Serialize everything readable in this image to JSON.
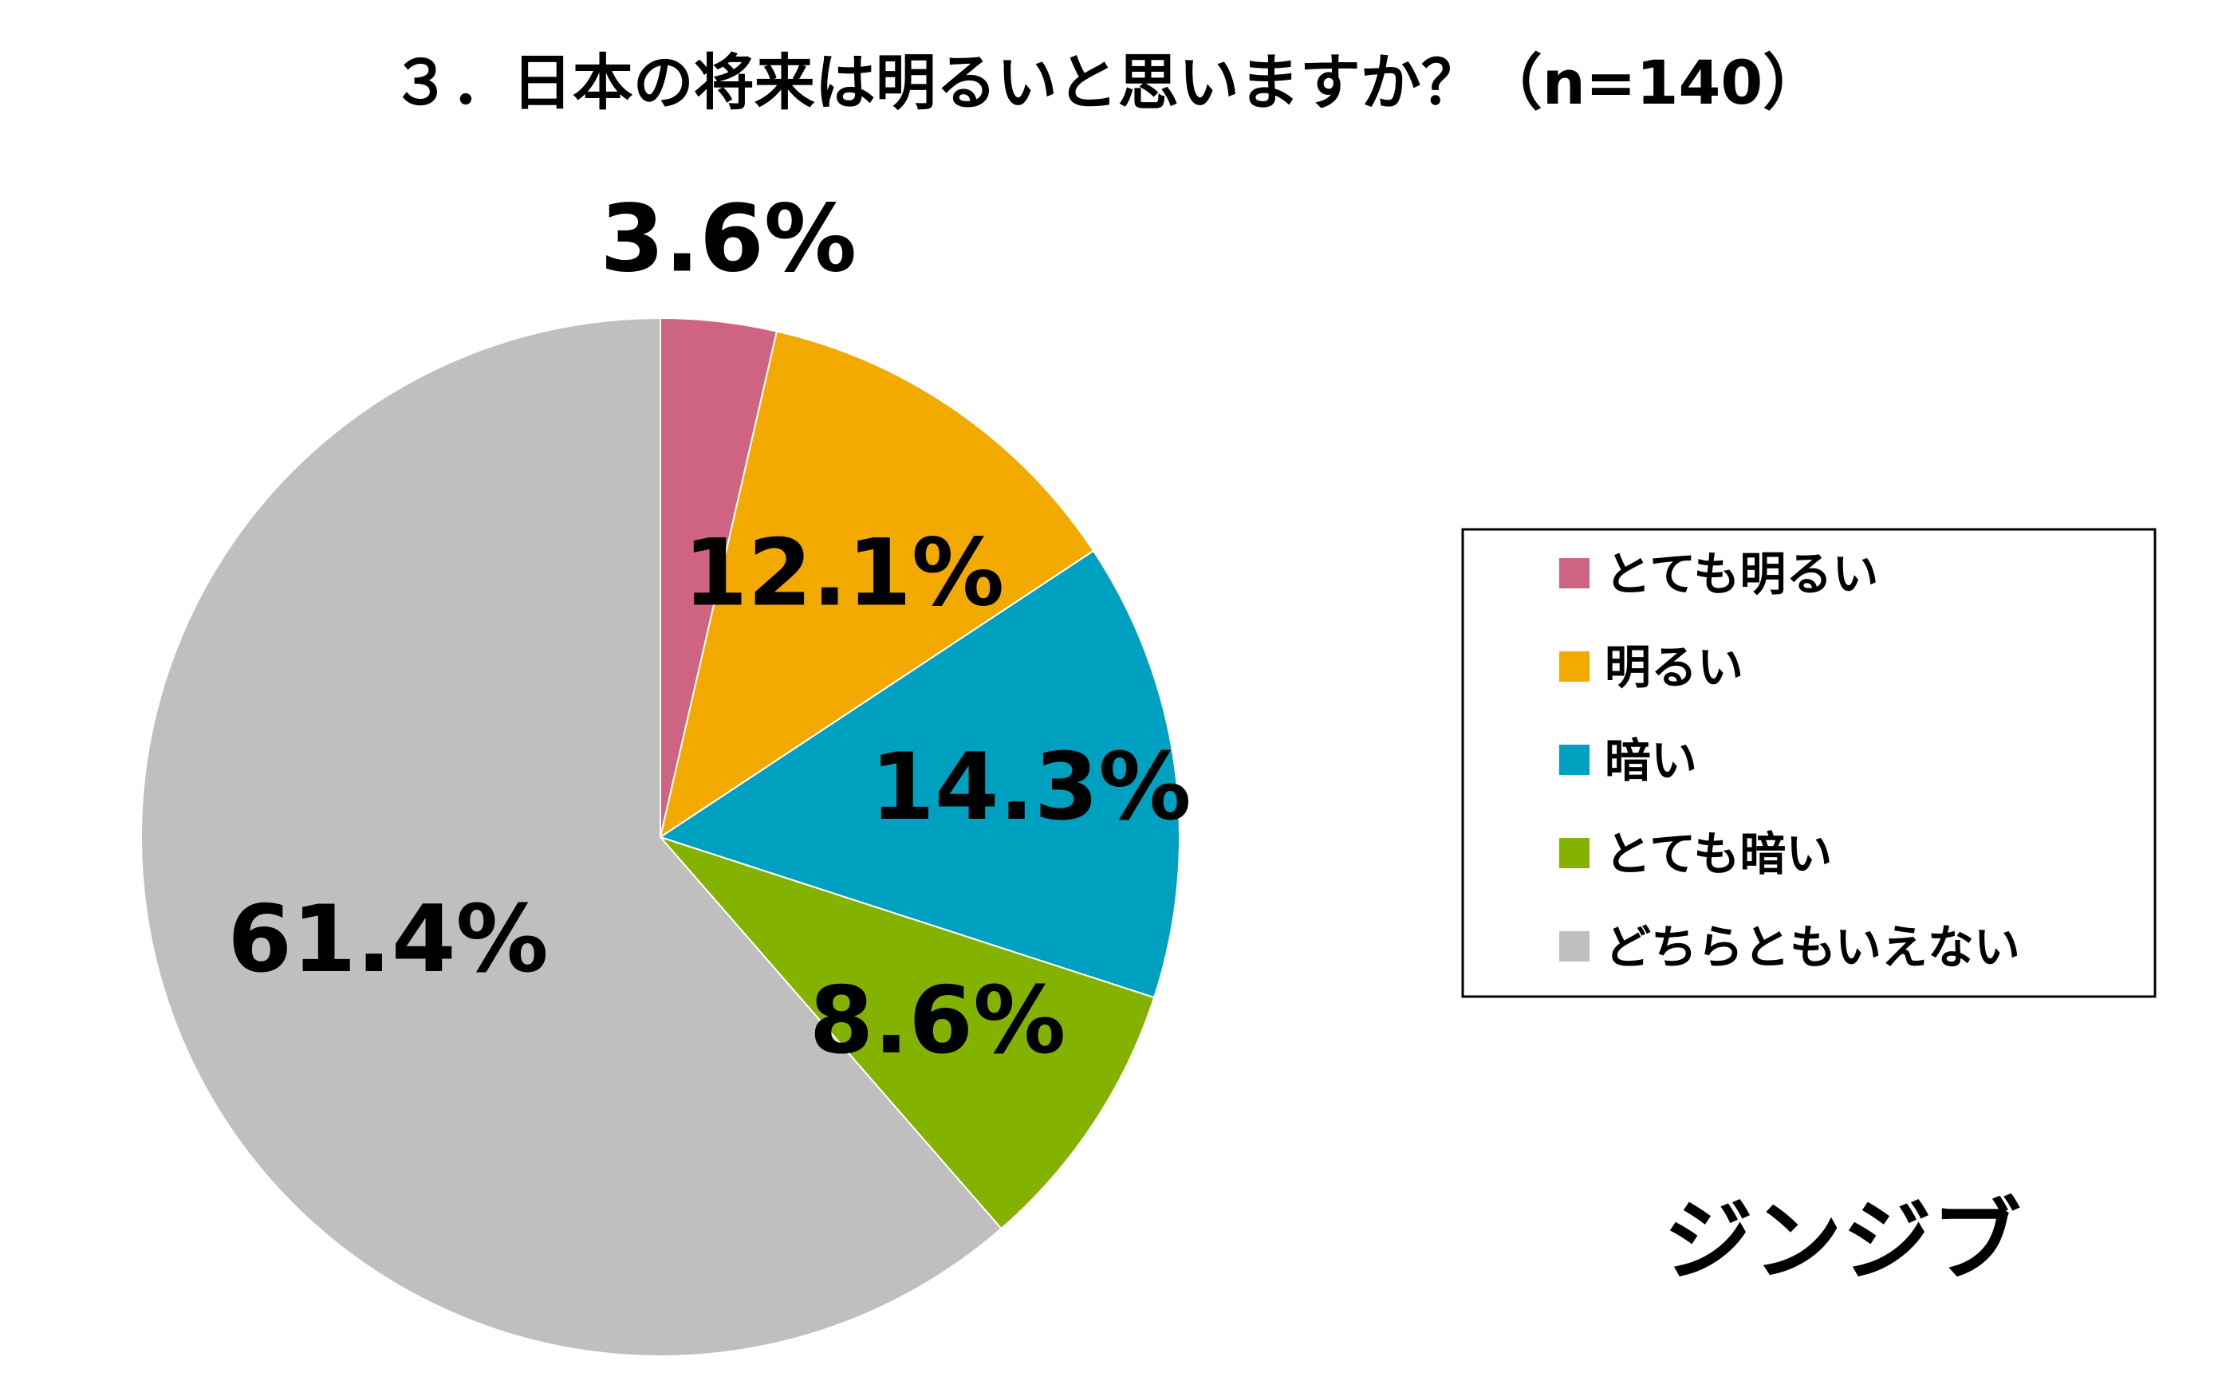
{
  "chart_data": {
    "type": "pie",
    "title": "３．日本の将来は明るいと思いますか？（n=140）",
    "start_angle_deg": 0,
    "direction": "clockwise",
    "legend_position": "right",
    "slices": [
      {
        "name": "とても明るい",
        "value": 3.6,
        "label": "3.6%",
        "color": "#cf6482"
      },
      {
        "name": "明るい",
        "value": 12.1,
        "label": "12.1%",
        "color": "#f2a900"
      },
      {
        "name": "暗い",
        "value": 14.3,
        "label": "14.3%",
        "color": "#00a0c0"
      },
      {
        "name": "とても暗い",
        "value": 8.6,
        "label": "8.6%",
        "color": "#84b200"
      },
      {
        "name": "どちらともいえない",
        "value": 61.4,
        "label": "61.4%",
        "color": "#bfbfbf"
      }
    ]
  },
  "logo": {
    "text": "ジンジブ"
  }
}
